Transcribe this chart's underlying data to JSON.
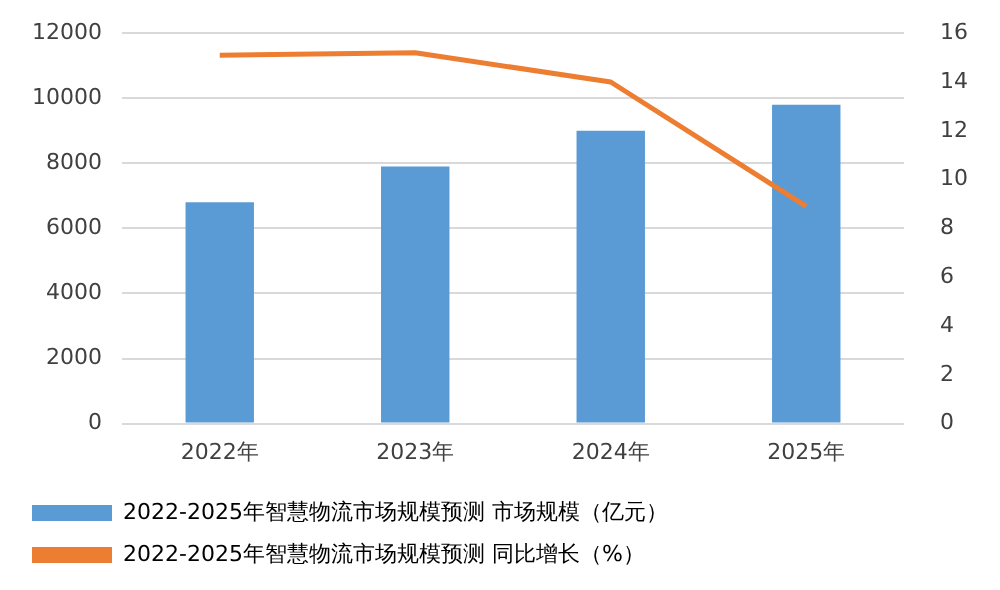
{
  "chart_data": {
    "type": "bar",
    "categories": [
      "2022年",
      "2023年",
      "2024年",
      "2025年"
    ],
    "series": [
      {
        "name": "2022-2025年智慧物流市场规模预测 市场规模（亿元）",
        "color": "#5b9bd5",
        "values": [
          6800,
          7900,
          9000,
          9800
        ]
      },
      {
        "name": "2022-2025年智慧物流市场规模预测 同比增长（%）",
        "type": "line",
        "axis": "y2",
        "color": "#ed7d31",
        "values": [
          15.1,
          15.2,
          14.0,
          8.9
        ]
      }
    ],
    "ylim": [
      0,
      12000
    ],
    "yticks": [
      0,
      2000,
      4000,
      6000,
      8000,
      10000,
      12000
    ],
    "y2lim": [
      0,
      16
    ],
    "y2ticks": [
      0,
      2,
      4,
      6,
      8,
      10,
      12,
      14,
      16
    ],
    "grid": "y",
    "legend": "bottom",
    "marker": "none",
    "line_style": "solid"
  }
}
